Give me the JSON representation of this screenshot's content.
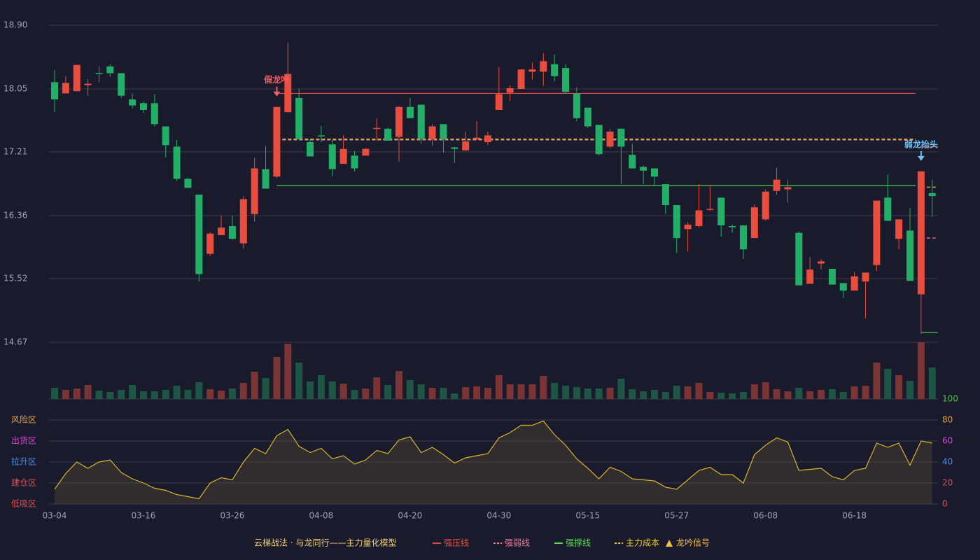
{
  "chart_data": {
    "type": "candlestick",
    "subtitle": "云梯战法 · 与龙同行——主力量化模型",
    "categories": [
      "03-04",
      null,
      null,
      null,
      null,
      null,
      null,
      null,
      "03-16",
      null,
      null,
      null,
      null,
      null,
      null,
      null,
      "03-26",
      null,
      null,
      null,
      null,
      null,
      null,
      null,
      "04-08",
      null,
      null,
      null,
      null,
      null,
      null,
      null,
      "04-20",
      null,
      null,
      null,
      null,
      null,
      null,
      null,
      "04-30",
      null,
      null,
      null,
      null,
      null,
      null,
      null,
      "05-15",
      null,
      null,
      null,
      null,
      null,
      null,
      null,
      "05-27",
      null,
      null,
      null,
      null,
      null,
      null,
      null,
      "06-08",
      null,
      null,
      null,
      null,
      null,
      null,
      null,
      "06-18",
      null,
      null,
      null,
      null,
      null,
      null,
      null
    ],
    "open": [
      18.14,
      17.99,
      18.02,
      18.1,
      18.26,
      18.35,
      18.26,
      17.91,
      17.86,
      17.86,
      17.55,
      17.28,
      16.85,
      16.64,
      15.85,
      16.1,
      16.22,
      15.99,
      16.38,
      16.98,
      16.88,
      17.74,
      17.93,
      17.34,
      17.43,
      17.31,
      17.05,
      17.16,
      17.16,
      17.52,
      17.52,
      17.41,
      17.81,
      17.84,
      17.38,
      17.58,
      17.27,
      17.23,
      17.38,
      17.34,
      17.77,
      18.0,
      18.05,
      18.28,
      18.28,
      18.38,
      18.33,
      17.99,
      17.8,
      17.57,
      17.28,
      17.52,
      17.17,
      17.01,
      16.99,
      16.78,
      16.5,
      16.18,
      16.22,
      16.44,
      16.6,
      16.22,
      16.23,
      16.06,
      16.31,
      16.69,
      16.71,
      16.13,
      15.45,
      15.72,
      15.65,
      15.46,
      15.36,
      15.48,
      15.7,
      16.6,
      16.05,
      16.16,
      15.31,
      16.66
    ],
    "close": [
      17.91,
      18.13,
      18.37,
      18.12,
      18.25,
      18.26,
      17.96,
      17.83,
      17.77,
      17.58,
      17.3,
      16.85,
      16.73,
      15.58,
      16.12,
      16.2,
      16.05,
      16.58,
      16.99,
      16.72,
      17.81,
      18.25,
      17.38,
      17.15,
      17.42,
      16.98,
      17.25,
      16.99,
      17.25,
      17.53,
      17.36,
      17.81,
      17.66,
      17.38,
      17.55,
      17.38,
      17.25,
      17.35,
      17.4,
      17.43,
      17.98,
      18.06,
      18.31,
      18.31,
      18.42,
      18.22,
      18.01,
      17.66,
      17.55,
      17.18,
      17.48,
      17.28,
      16.99,
      16.96,
      16.88,
      16.5,
      16.06,
      16.24,
      16.43,
      16.45,
      16.23,
      16.21,
      15.91,
      16.47,
      16.68,
      16.84,
      16.74,
      15.43,
      15.64,
      15.75,
      15.44,
      15.36,
      15.55,
      15.6,
      16.56,
      16.29,
      16.31,
      15.49,
      16.95,
      16.62
    ],
    "high": [
      18.3,
      18.22,
      18.37,
      18.18,
      18.35,
      18.38,
      18.26,
      17.99,
      17.88,
      17.98,
      17.55,
      17.37,
      16.87,
      16.64,
      16.14,
      16.36,
      16.36,
      16.62,
      17.13,
      17.29,
      17.81,
      18.67,
      18.05,
      17.38,
      17.56,
      17.37,
      17.43,
      17.22,
      17.26,
      17.66,
      17.53,
      17.82,
      17.93,
      17.84,
      17.58,
      17.58,
      17.28,
      17.48,
      17.62,
      17.48,
      18.34,
      18.1,
      18.31,
      18.4,
      18.53,
      18.51,
      18.38,
      18.07,
      17.8,
      17.57,
      17.52,
      17.52,
      17.32,
      17.03,
      16.99,
      16.78,
      16.5,
      16.27,
      16.78,
      16.77,
      16.6,
      16.24,
      16.23,
      16.51,
      16.71,
      17.0,
      16.84,
      16.15,
      15.81,
      15.78,
      15.65,
      15.46,
      15.61,
      15.6,
      16.56,
      16.91,
      16.31,
      16.46,
      16.95,
      16.84
    ],
    "low": [
      17.74,
      17.99,
      18.02,
      17.96,
      18.14,
      18.21,
      17.93,
      17.79,
      17.73,
      17.55,
      17.14,
      16.82,
      16.73,
      15.48,
      15.82,
      16.1,
      16.04,
      15.92,
      16.28,
      16.72,
      16.86,
      17.74,
      17.38,
      17.15,
      17.34,
      16.88,
      17.05,
      16.95,
      17.16,
      17.36,
      17.36,
      17.08,
      17.66,
      17.32,
      17.29,
      17.2,
      17.06,
      17.23,
      17.37,
      17.3,
      17.77,
      17.89,
      18.05,
      18.17,
      18.09,
      18.15,
      17.99,
      17.62,
      17.53,
      17.16,
      17.26,
      16.78,
      16.99,
      16.78,
      16.76,
      16.38,
      15.86,
      15.88,
      16.2,
      16.42,
      16.08,
      16.13,
      15.78,
      16.06,
      16.29,
      16.64,
      16.53,
      15.43,
      15.45,
      15.64,
      15.44,
      15.26,
      15.36,
      14.99,
      15.62,
      16.29,
      15.91,
      15.49,
      14.78,
      16.34
    ],
    "up_color": "#e84d3d",
    "down_color": "#22b068",
    "ylim": [
      14.67,
      18.9
    ],
    "yticks": [
      14.67,
      15.52,
      16.36,
      17.21,
      18.05,
      {
        "value": 18.9,
        "label": "18.90"
      }
    ],
    "grid": true,
    "volume": [
      16,
      13,
      15,
      20,
      12,
      10,
      13,
      20,
      11,
      11,
      13,
      19,
      13,
      24,
      14,
      12,
      15,
      23,
      39,
      30,
      60,
      79,
      52,
      25,
      34,
      25,
      22,
      13,
      15,
      31,
      20,
      40,
      27,
      21,
      16,
      16,
      8,
      17,
      18,
      16,
      34,
      21,
      21,
      21,
      33,
      23,
      19,
      17,
      15,
      15,
      16,
      29,
      14,
      11,
      13,
      10,
      19,
      18,
      23,
      10,
      9,
      8,
      10,
      21,
      24,
      14,
      11,
      16,
      11,
      13,
      14,
      10,
      18,
      19,
      52,
      43,
      34,
      26,
      81,
      45
    ],
    "volume_up_color": "#7a3434",
    "volume_down_color": "#1d5643",
    "indicator": {
      "values": [
        14,
        29,
        40,
        34,
        40,
        42,
        30,
        24,
        20,
        15,
        13,
        9,
        7,
        5,
        20,
        25,
        23,
        40,
        53,
        48,
        65,
        71,
        55,
        49,
        53,
        43,
        46,
        38,
        42,
        51,
        48,
        61,
        64,
        49,
        54,
        47,
        39,
        44,
        46,
        48,
        63,
        68,
        75,
        75,
        79,
        66,
        56,
        43,
        34,
        24,
        35,
        31,
        24,
        23,
        22,
        16,
        14,
        23,
        32,
        35,
        28,
        28,
        20,
        47,
        56,
        63,
        59,
        32,
        33,
        34,
        26,
        23,
        32,
        34,
        58,
        54,
        58,
        37,
        60,
        58
      ],
      "color": "#d8b525",
      "ylim": [
        0,
        100
      ],
      "yticks": [
        0,
        20,
        40,
        60,
        80,
        100
      ],
      "ytick_colors": [
        "#e84a4a",
        "#e84a4a",
        "#4a8ee8",
        "#e040e0",
        "#e8a030",
        "#3ccc3c"
      ],
      "zones": [
        {
          "label": "低吸区",
          "color": "#e84a4a"
        },
        {
          "label": "建仓区",
          "color": "#e84a4a"
        },
        {
          "label": "拉升区",
          "color": "#4a8ee8"
        },
        {
          "label": "出货区",
          "color": "#e040e0"
        },
        {
          "label": "风险区",
          "color": "#e8a030"
        }
      ]
    },
    "levels": [
      {
        "name": "强压线",
        "color": "#e84d3d",
        "dashed": false,
        "segments": [
          {
            "start": 20,
            "end": 77,
            "value": 17.99
          },
          {
            "start": 78,
            "end": 79,
            "value": 17.28
          }
        ]
      },
      {
        "name": "强弱线",
        "color": "#f07a9a",
        "dashed": true,
        "segments": [
          {
            "start": 20,
            "end": 77,
            "value": 17.37
          },
          {
            "start": 78,
            "end": 79,
            "value": 16.06
          }
        ]
      },
      {
        "name": "强撑线",
        "color": "#4ee04e",
        "dashed": false,
        "segments": [
          {
            "start": 20,
            "end": 77,
            "value": 16.76
          },
          {
            "start": 78,
            "end": 79,
            "value": 14.8
          }
        ]
      },
      {
        "name": "主力成本",
        "color": "#f0d020",
        "dashed": true,
        "segments": [
          {
            "start": 20,
            "end": 77,
            "value": 17.38
          },
          {
            "start": 78,
            "end": 79,
            "value": 16.74
          }
        ]
      }
    ],
    "signals": {
      "name": "龙吟信号",
      "color": "#f0c040",
      "items": [
        {
          "index": 20,
          "label": "假龙吟",
          "color": "#f06060"
        },
        {
          "index": 78,
          "label": "弱龙抬头",
          "color": "#6ec0f0"
        }
      ]
    }
  }
}
